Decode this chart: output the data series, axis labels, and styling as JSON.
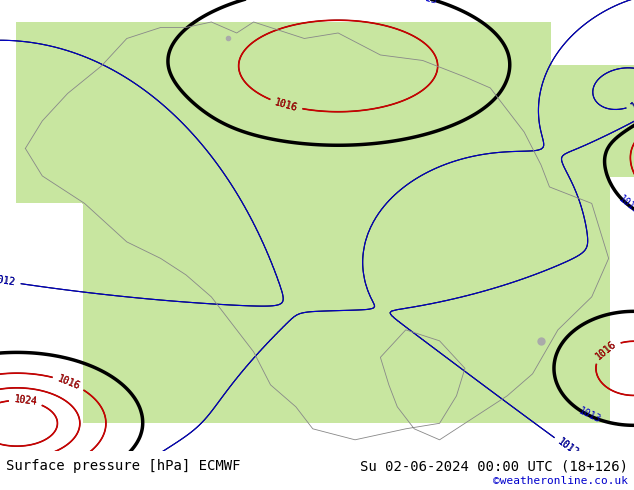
{
  "title_left": "Surface pressure [hPa] ECMWF",
  "title_right": "Su 02-06-2024 00:00 UTC (18+126)",
  "watermark": "©weatheronline.co.uk",
  "bg_color": "#ffffff",
  "land_color": "#c8e6a0",
  "ocean_color": "#ffffff",
  "border_color": "#888888",
  "isobar_color_black": "#000000",
  "isobar_color_blue": "#0000cc",
  "isobar_color_red": "#cc0000",
  "label_fontsize": 9,
  "footer_fontsize": 10,
  "watermark_color": "#0000cc",
  "figsize": [
    6.34,
    4.9
  ],
  "dpi": 100
}
